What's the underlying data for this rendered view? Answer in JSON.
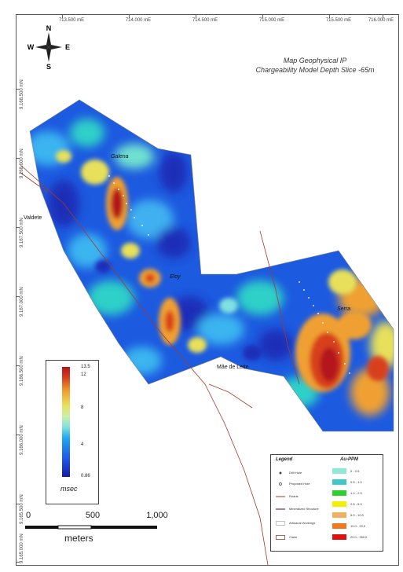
{
  "map": {
    "title_line1": "Map Geophysical IP",
    "title_line2": "Chargeability Model Depth Slice -65m"
  },
  "grid": {
    "easting_labels": [
      "713.500 mE",
      "714.000 mE",
      "714.500 mE",
      "715.000 mE",
      "715.500 mE",
      "716.000 mE"
    ],
    "northing_labels": [
      "9.168.500 mN",
      "9.168.000 mN",
      "9.167.500 mN",
      "9.167.000 mN",
      "9.166.500 mN",
      "9.166.000 mN",
      "9.165.500 mN",
      "9.165.000 mN"
    ]
  },
  "compass": {
    "north": "N",
    "south": "S",
    "east": "E",
    "west": "W"
  },
  "places": {
    "galena": "Galena",
    "valdete": "Valdete",
    "eloy": "Eloy",
    "serra": "Serra",
    "mae_de_leite": "Mãe de Leite"
  },
  "colorbar": {
    "max": "13.5",
    "labels": [
      "12",
      "8",
      "4"
    ],
    "min": "0.86",
    "unit": "msec",
    "colors": [
      "#1a1aa8",
      "#1ea5f0",
      "#e8e05a",
      "#b3121e"
    ]
  },
  "scale": {
    "labels": [
      "0",
      "500",
      "1,000"
    ],
    "unit": "meters"
  },
  "legend": {
    "title": "Legend",
    "items": [
      "Drill Hole",
      "Proposed Hole",
      "Roads",
      "Mineralized Structure",
      "Artisanal Workings",
      "Claim"
    ],
    "ppm_title": "Au-PPM",
    "ppm_ranges": [
      "0 - 0.5",
      "0.5 - 1.0",
      "1.0 - 2.5",
      "2.5 - 5.0",
      "5.0 - 10.0",
      "10.0 - 20.0",
      "20.0 - 350.0"
    ],
    "ppm_colors": [
      "#8fe8d8",
      "#40c8c8",
      "#30d030",
      "#f0f000",
      "#f0b060",
      "#f07820",
      "#e01010"
    ]
  }
}
